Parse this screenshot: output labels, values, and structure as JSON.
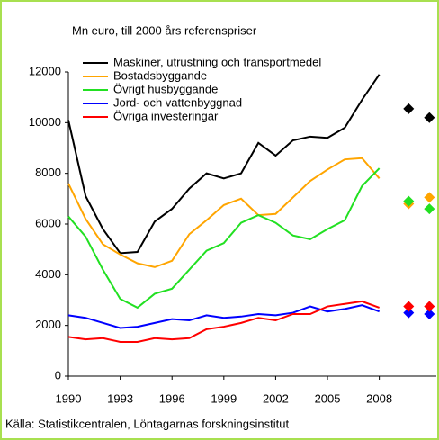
{
  "chart_data": {
    "type": "line",
    "title": "Mn euro, till 2000 års referenspriser",
    "source": "Källa: Statistikcentralen, Löntagarnas forskningsinstitut",
    "x": [
      1990,
      1991,
      1992,
      1993,
      1994,
      1995,
      1996,
      1997,
      1998,
      1999,
      2000,
      2001,
      2002,
      2003,
      2004,
      2005,
      2006,
      2007,
      2008
    ],
    "forecast_x": [
      2009.7,
      2010.9
    ],
    "xlim": [
      1990,
      2011.3
    ],
    "xticks": [
      1990,
      1993,
      1996,
      1999,
      2002,
      2005,
      2008
    ],
    "ylim": [
      0,
      12000
    ],
    "yticks": [
      0,
      2000,
      4000,
      6000,
      8000,
      10000,
      12000
    ],
    "series": [
      {
        "name": "Maskiner, utrustning och transportmedel",
        "color": "#000000",
        "values": [
          10100,
          7100,
          5800,
          4850,
          4900,
          6100,
          6600,
          7400,
          8000,
          7800,
          8000,
          9200,
          8700,
          9300,
          9450,
          9400,
          9800,
          10900,
          11900
        ],
        "forecast": [
          10550,
          10200
        ]
      },
      {
        "name": "Bostadsbyggande",
        "color": "#ffa500",
        "values": [
          7600,
          6200,
          5200,
          4800,
          4450,
          4300,
          4550,
          5600,
          6150,
          6750,
          7000,
          6350,
          6400,
          7050,
          7700,
          8150,
          8550,
          8600,
          7800
        ],
        "forecast": [
          6800,
          7050
        ]
      },
      {
        "name": "Övrigt husbyggande",
        "color": "#22e022",
        "values": [
          6300,
          5500,
          4200,
          3050,
          2700,
          3250,
          3450,
          4200,
          4950,
          5250,
          6050,
          6350,
          6050,
          5550,
          5400,
          5800,
          6150,
          7500,
          8200
        ],
        "forecast": [
          6900,
          6600
        ]
      },
      {
        "name": "Jord- och vattenbyggnad",
        "color": "#0000ff",
        "values": [
          2400,
          2300,
          2100,
          1900,
          1950,
          2100,
          2250,
          2200,
          2400,
          2300,
          2350,
          2450,
          2400,
          2500,
          2750,
          2550,
          2650,
          2800,
          2550
        ],
        "forecast": [
          2500,
          2450
        ]
      },
      {
        "name": "Övriga investeringar",
        "color": "#ff0000",
        "values": [
          1550,
          1450,
          1500,
          1350,
          1350,
          1500,
          1450,
          1500,
          1850,
          1950,
          2100,
          2300,
          2200,
          2450,
          2450,
          2750,
          2850,
          2950,
          2700
        ],
        "forecast": [
          2750,
          2750
        ]
      }
    ]
  }
}
